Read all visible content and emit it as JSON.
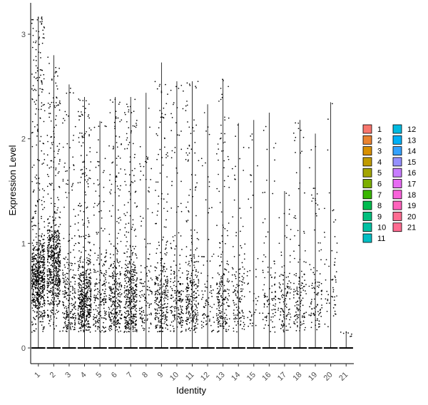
{
  "chart_data": {
    "type": "violin-jitter",
    "xlabel": "Identity",
    "ylabel": "Expression Level",
    "categories": [
      "1",
      "2",
      "3",
      "4",
      "5",
      "6",
      "7",
      "8",
      "9",
      "10",
      "11",
      "12",
      "13",
      "14",
      "15",
      "16",
      "17",
      "18",
      "19",
      "20",
      "21"
    ],
    "y_ticks": [
      0,
      1,
      2,
      3
    ],
    "ylim": [
      -0.15,
      3.3
    ],
    "max_values": [
      3.17,
      2.8,
      2.52,
      2.4,
      2.17,
      2.4,
      2.4,
      2.44,
      2.73,
      2.55,
      2.55,
      2.33,
      2.57,
      2.15,
      2.18,
      2.25,
      1.5,
      2.18,
      2.05,
      2.35,
      0.16
    ],
    "nonzero_density": [
      1.0,
      0.85,
      0.35,
      0.75,
      0.3,
      0.45,
      0.6,
      0.18,
      0.42,
      0.28,
      0.4,
      0.12,
      0.3,
      0.18,
      0.06,
      0.14,
      0.16,
      0.18,
      0.14,
      0.08,
      0.01
    ],
    "legend": {
      "entries": [
        "1",
        "2",
        "3",
        "4",
        "5",
        "6",
        "7",
        "8",
        "9",
        "10",
        "11",
        "12",
        "13",
        "14",
        "15",
        "16",
        "17",
        "18",
        "19",
        "20",
        "21"
      ],
      "colors": [
        "#F8766D",
        "#EA8331",
        "#D89000",
        "#C09B00",
        "#A3A500",
        "#7CAE00",
        "#39B600",
        "#00BB4E",
        "#00BF7D",
        "#00C1A3",
        "#00BFC4",
        "#00BAE0",
        "#00B0F6",
        "#35A2FF",
        "#9590FF",
        "#C77CFF",
        "#E76BF3",
        "#FA62DB",
        "#FF62BC",
        "#FF6C91",
        "#FF6C91"
      ],
      "placement": "right"
    },
    "grid": false
  }
}
